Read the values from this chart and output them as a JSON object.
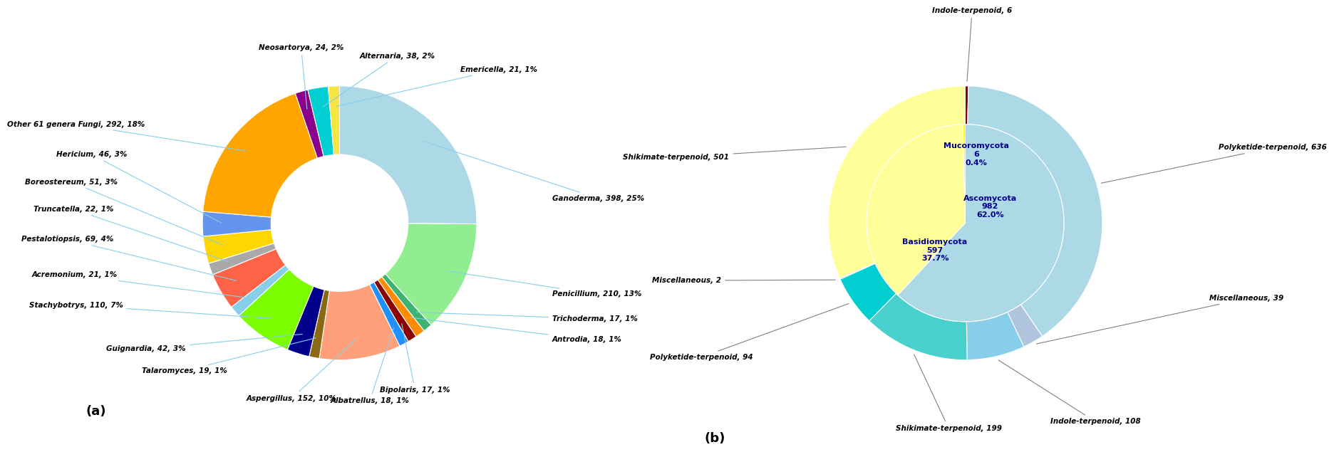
{
  "chart_a": {
    "labels": [
      "Ganoderma",
      "Penicillium",
      "Trichoderma",
      "Antrodia",
      "Bipolaris",
      "Albatrellus",
      "Aspergillus",
      "Talaromyces",
      "Guignardia",
      "Stachybotrys",
      "Acremonium",
      "Pestalotiopsis",
      "Truncatella",
      "Boreostereum",
      "Hericium",
      "Other 61 genera Fungi",
      "Neosartorya",
      "Alternaria",
      "Emericella"
    ],
    "values": [
      398,
      210,
      17,
      18,
      17,
      18,
      152,
      19,
      42,
      110,
      21,
      69,
      22,
      51,
      46,
      292,
      24,
      38,
      21
    ],
    "display_labels": [
      "Ganoderma, 398, 25%",
      "Penicillium, 210, 13%",
      "Trichoderma, 17, 1%",
      "Antrodia, 18, 1%",
      "Bipolaris, 17, 1%",
      "Albatrellus, 18, 1%",
      "Aspergillus, 152, 10%",
      "Talaromyces, 19, 1%",
      "Guignardia, 42, 3%",
      "Stachybotrys, 110, 7%",
      "Acremonium, 21, 1%",
      "Pestalotiopsis, 69, 4%",
      "Truncatella, 22, 1%",
      "Boreostereum, 51, 3%",
      "Hericium, 46, 3%",
      "Other 61 genera Fungi, 292, 18%",
      "Neosartorya, 24, 2%",
      "Alternaria, 38, 2%",
      "Emericella, 21, 1%"
    ],
    "colors": [
      "#ADD8E6",
      "#90EE90",
      "#3CB371",
      "#FF8C00",
      "#8B0000",
      "#1E90FF",
      "#FFA07A",
      "#8B6914",
      "#00008B",
      "#7CFC00",
      "#87CEEB",
      "#FF6347",
      "#A9A9A9",
      "#FFD700",
      "#6495ED",
      "#FFA500",
      "#8B008B",
      "#00CED1",
      "#F5E642"
    ],
    "label_positions": [
      [
        1.55,
        0.18,
        "left"
      ],
      [
        1.55,
        -0.52,
        "left"
      ],
      [
        1.55,
        -0.7,
        "left"
      ],
      [
        1.55,
        -0.85,
        "left"
      ],
      [
        0.55,
        -1.22,
        "center"
      ],
      [
        0.22,
        -1.3,
        "center"
      ],
      [
        -0.35,
        -1.28,
        "center"
      ],
      [
        -0.82,
        -1.08,
        "right"
      ],
      [
        -1.12,
        -0.92,
        "right"
      ],
      [
        -1.58,
        -0.6,
        "right"
      ],
      [
        -1.62,
        -0.38,
        "right"
      ],
      [
        -1.65,
        -0.12,
        "right"
      ],
      [
        -1.65,
        0.1,
        "right"
      ],
      [
        -1.62,
        0.3,
        "right"
      ],
      [
        -1.55,
        0.5,
        "right"
      ],
      [
        -1.42,
        0.72,
        "right"
      ],
      [
        -0.28,
        1.28,
        "center"
      ],
      [
        0.42,
        1.22,
        "center"
      ],
      [
        0.88,
        1.12,
        "left"
      ]
    ]
  },
  "chart_b": {
    "inner_labels": [
      "Ascomycota\n982\n62.0%",
      "Basidiomycota\n597\n37.7%",
      "Mucoromycota\n6\n0.4%"
    ],
    "inner_values": [
      982,
      597,
      6
    ],
    "inner_colors": [
      "#ADD8E6",
      "#FFFF99",
      "#FFFF00"
    ],
    "outer_values": [
      6,
      636,
      39,
      108,
      199,
      94,
      2,
      501
    ],
    "outer_colors": [
      "#8B0000",
      "#ADD8E6",
      "#B0C4DE",
      "#87CEEB",
      "#48D1CC",
      "#00CED1",
      "#9370DB",
      "#FFFF99"
    ],
    "outer_display_labels": [
      "Indole-terpenoid, 6",
      "Polyketide-terpenoid, 636",
      "Miscellaneous, 39",
      "Indole-terpenoid, 108",
      "Shikimate-terpenoid, 199",
      "Polyketide-terpenoid, 94",
      "Miscellaneous, 2",
      "Shikimate-terpenoid, 501"
    ],
    "outer_label_positions": [
      [
        0.05,
        1.55,
        "center"
      ],
      [
        1.85,
        0.55,
        "left"
      ],
      [
        1.78,
        -0.55,
        "left"
      ],
      [
        0.95,
        -1.45,
        "center"
      ],
      [
        -0.12,
        -1.5,
        "center"
      ],
      [
        -1.55,
        -0.98,
        "right"
      ],
      [
        -1.78,
        -0.42,
        "right"
      ],
      [
        -1.72,
        0.48,
        "right"
      ]
    ]
  }
}
